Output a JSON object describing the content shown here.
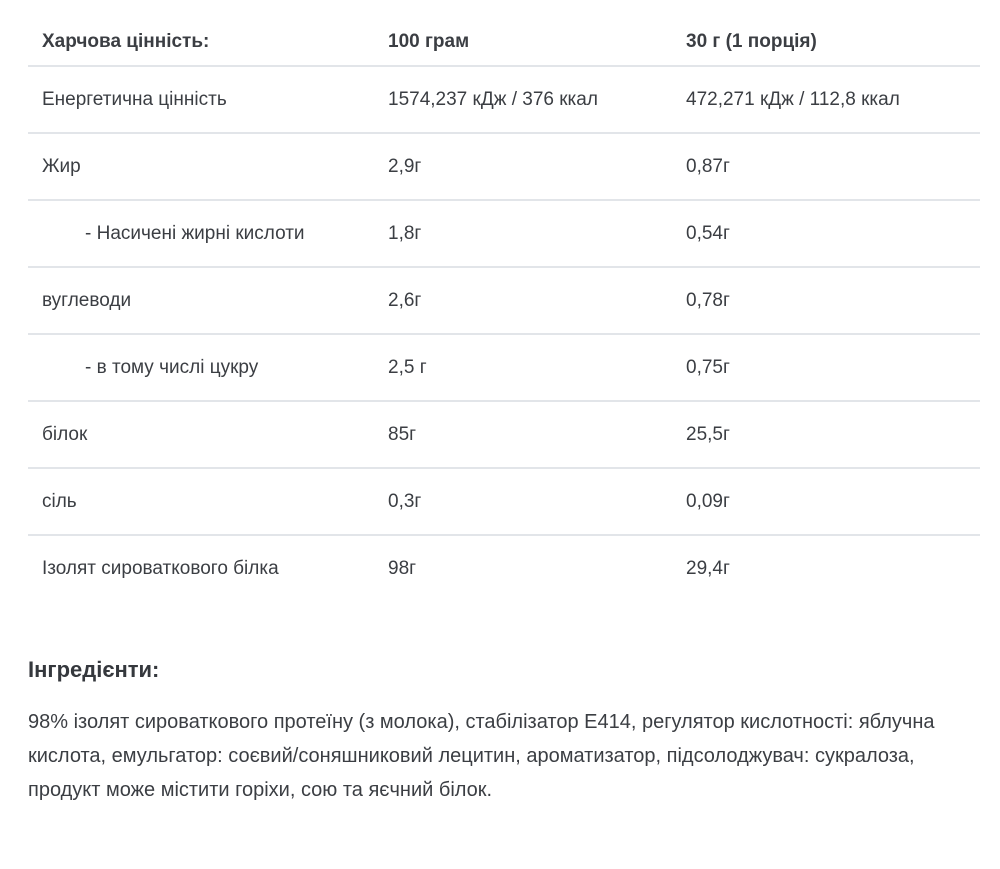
{
  "table": {
    "header": {
      "nutrition_label": "Харчова цінність:",
      "per_100g_label": "100 грам",
      "per_serving_label": "30 г (1 порція)"
    },
    "rows": [
      {
        "label": "Енергетична цінність",
        "per100": "1574,237 кДж / 376 ккал",
        "per30": "472,271 кДж / 112,8 ккал",
        "indent": false
      },
      {
        "label": "Жир",
        "per100": "2,9г",
        "per30": "0,87г",
        "indent": false
      },
      {
        "label": "- Насичені жирні кислоти",
        "per100": "1,8г",
        "per30": "0,54г",
        "indent": true
      },
      {
        "label": "вуглеводи",
        "per100": "2,6г",
        "per30": "0,78г",
        "indent": false
      },
      {
        "label": "- в тому числі цукру",
        "per100": "2,5 г",
        "per30": "0,75г",
        "indent": true
      },
      {
        "label": "білок",
        "per100": "85г",
        "per30": "25,5г",
        "indent": false
      },
      {
        "label": "сіль",
        "per100": "0,3г",
        "per30": "0,09г",
        "indent": false
      },
      {
        "label": "Ізолят сироваткового білка",
        "per100": "98г",
        "per30": "29,4г",
        "indent": false
      }
    ]
  },
  "ingredients": {
    "heading": "Інгредієнти:",
    "text": "98% ізолят сироваткового протеїну (з молока), стабілізатор Е414, регулятор кислотності: яблучна кислота, емульгатор: соєвий/соняшниковий лецитин, ароматизатор, підсолоджувач: сукралоза, продукт може містити горіхи, сою та яєчний білок."
  },
  "colors": {
    "text": "#3b3e43",
    "divider": "#e2e5e9",
    "background": "#ffffff"
  }
}
